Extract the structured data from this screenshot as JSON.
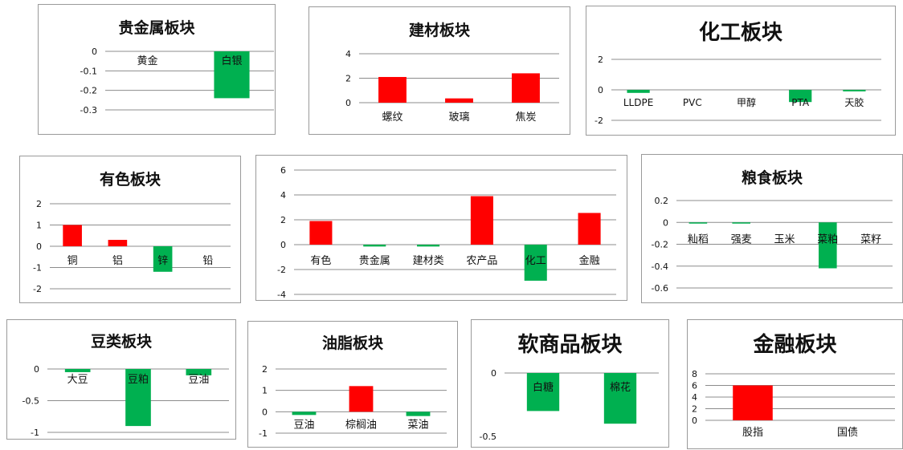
{
  "colors": {
    "positive": "#ff0000",
    "negative": "#00b050",
    "grid": "#8c8c8c",
    "text": "#111111"
  },
  "chart_data": [
    {
      "id": "precious",
      "type": "bar",
      "title": "贵金属板块",
      "categories": [
        "黄金",
        "白银"
      ],
      "values": [
        0,
        -0.24
      ],
      "ylim": [
        -0.3,
        0
      ],
      "yticks": [
        0,
        -0.1,
        -0.2,
        -0.3
      ],
      "ytick_labels": [
        "0",
        "-0.1",
        "-0.2",
        "-0.3"
      ],
      "grid": true
    },
    {
      "id": "building",
      "type": "bar",
      "title": "建材板块",
      "categories": [
        "螺纹",
        "玻璃",
        "焦炭"
      ],
      "values": [
        2.1,
        0.35,
        2.4
      ],
      "ylim": [
        0,
        4
      ],
      "yticks": [
        4,
        2,
        0
      ],
      "ytick_labels": [
        "4",
        "2",
        "0"
      ],
      "grid": true
    },
    {
      "id": "chemical",
      "type": "bar",
      "title": "化工板块",
      "categories": [
        "LLDPE",
        "PVC",
        "甲醇",
        "PTA",
        "天胶"
      ],
      "values": [
        -0.2,
        0,
        0,
        -0.8,
        -0.1
      ],
      "ylim": [
        -2,
        2
      ],
      "yticks": [
        2,
        0,
        -2
      ],
      "ytick_labels": [
        "2",
        "0",
        "-2"
      ],
      "grid": true
    },
    {
      "id": "nonferrous",
      "type": "bar",
      "title": "有色板块",
      "categories": [
        "铜",
        "铝",
        "锌",
        "铅"
      ],
      "values": [
        1.0,
        0.3,
        -1.2,
        0
      ],
      "ylim": [
        -2,
        2
      ],
      "yticks": [
        2,
        1,
        0,
        -1,
        -2
      ],
      "ytick_labels": [
        "2",
        "1",
        "0",
        "-1",
        "-2"
      ],
      "grid": true
    },
    {
      "id": "overview",
      "type": "bar",
      "title": "",
      "categories": [
        "有色",
        "贵金属",
        "建材类",
        "农产品",
        "化工",
        "金融"
      ],
      "values": [
        1.9,
        -0.15,
        -0.15,
        3.9,
        -2.9,
        2.55
      ],
      "ylim": [
        -4,
        6
      ],
      "yticks": [
        6,
        4,
        2,
        0,
        -2,
        -4
      ],
      "ytick_labels": [
        "6",
        "4",
        "2",
        "0",
        "-2",
        "-4"
      ],
      "grid": true
    },
    {
      "id": "grain",
      "type": "bar",
      "title": "粮食板块",
      "categories": [
        "籼稻",
        "强麦",
        "玉米",
        "菜粕",
        "菜籽"
      ],
      "values": [
        -0.01,
        -0.01,
        0,
        -0.42,
        0
      ],
      "ylim": [
        -0.6,
        0.2
      ],
      "yticks": [
        0.2,
        0,
        -0.2,
        -0.4,
        -0.6
      ],
      "ytick_labels": [
        "0.2",
        "0",
        "-0.2",
        "-0.4",
        "-0.6"
      ],
      "grid": true
    },
    {
      "id": "beans",
      "type": "bar",
      "title": "豆类板块",
      "categories": [
        "大豆",
        "豆粕",
        "豆油"
      ],
      "values": [
        -0.05,
        -0.9,
        -0.1
      ],
      "ylim": [
        -1,
        0
      ],
      "yticks": [
        0,
        -0.5,
        -1
      ],
      "ytick_labels": [
        "0",
        "-0.5",
        "-1"
      ],
      "grid": true
    },
    {
      "id": "oils",
      "type": "bar",
      "title": "油脂板块",
      "categories": [
        "豆油",
        "棕榈油",
        "菜油"
      ],
      "values": [
        -0.15,
        1.2,
        -0.2
      ],
      "ylim": [
        -1,
        2
      ],
      "yticks": [
        2,
        1,
        0,
        -1
      ],
      "ytick_labels": [
        "2",
        "1",
        "0",
        "-1"
      ],
      "grid": true
    },
    {
      "id": "softs",
      "type": "bar",
      "title": "软商品板块",
      "categories": [
        "白糖",
        "棉花"
      ],
      "values": [
        -0.3,
        -0.4
      ],
      "ylim": [
        -0.5,
        0
      ],
      "yticks": [
        0,
        -0.5
      ],
      "ytick_labels": [
        "0",
        "-0.5"
      ],
      "grid": false
    },
    {
      "id": "finance",
      "type": "bar",
      "title": "金融板块",
      "categories": [
        "股指",
        "国债"
      ],
      "values": [
        6,
        0
      ],
      "ylim": [
        0,
        8
      ],
      "yticks": [
        8,
        6,
        4,
        2,
        0
      ],
      "ytick_labels": [
        "8",
        "6",
        "4",
        "2",
        "0"
      ],
      "grid": true
    }
  ]
}
